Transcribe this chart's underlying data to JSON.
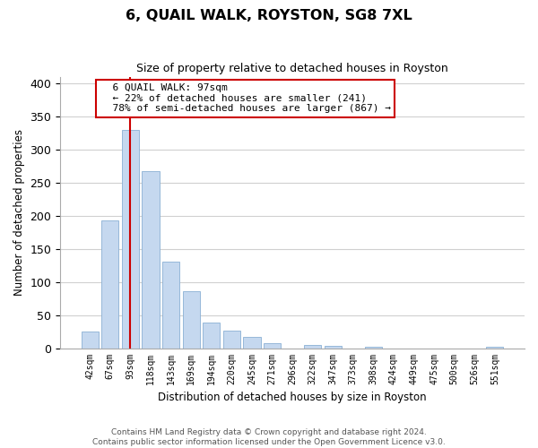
{
  "title": "6, QUAIL WALK, ROYSTON, SG8 7XL",
  "subtitle": "Size of property relative to detached houses in Royston",
  "xlabel": "Distribution of detached houses by size in Royston",
  "ylabel": "Number of detached properties",
  "bar_labels": [
    "42sqm",
    "67sqm",
    "93sqm",
    "118sqm",
    "143sqm",
    "169sqm",
    "194sqm",
    "220sqm",
    "245sqm",
    "271sqm",
    "296sqm",
    "322sqm",
    "347sqm",
    "373sqm",
    "398sqm",
    "424sqm",
    "449sqm",
    "475sqm",
    "500sqm",
    "526sqm",
    "551sqm"
  ],
  "bar_values": [
    25,
    193,
    330,
    267,
    130,
    86,
    38,
    26,
    17,
    8,
    0,
    5,
    3,
    0,
    2,
    0,
    0,
    0,
    0,
    0,
    2
  ],
  "bar_color": "#c5d8ef",
  "bar_edge_color": "#8ab0d4",
  "vline_x": 2,
  "vline_color": "#cc0000",
  "ylim": [
    0,
    410
  ],
  "yticks": [
    0,
    50,
    100,
    150,
    200,
    250,
    300,
    350,
    400
  ],
  "annotation_title": "6 QUAIL WALK: 97sqm",
  "annotation_line1": "← 22% of detached houses are smaller (241)",
  "annotation_line2": "78% of semi-detached houses are larger (867) →",
  "footer1": "Contains HM Land Registry data © Crown copyright and database right 2024.",
  "footer2": "Contains public sector information licensed under the Open Government Licence v3.0.",
  "grid_color": "#d0d0d0",
  "background_color": "#ffffff"
}
